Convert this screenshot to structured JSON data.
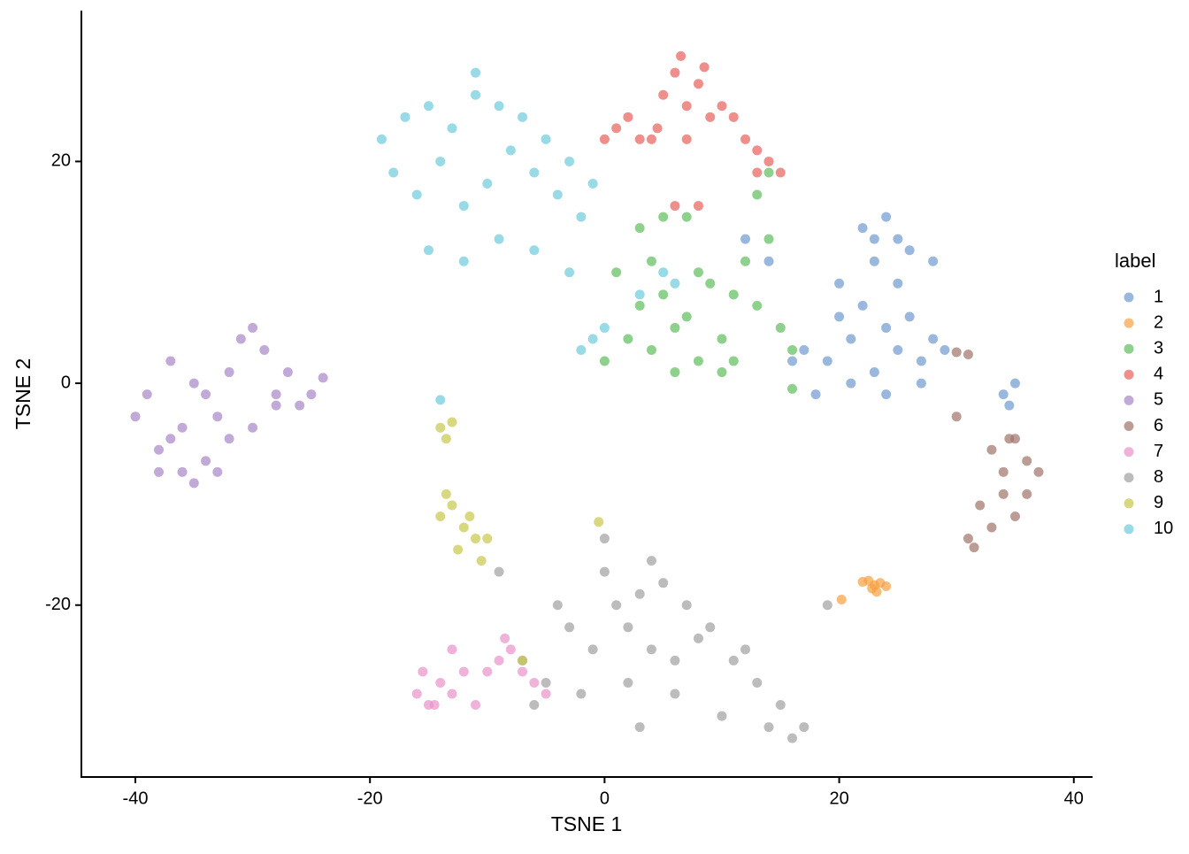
{
  "chart_data": {
    "type": "scatter",
    "xlabel": "TSNE 1",
    "ylabel": "TSNE 2",
    "legend_title": "label",
    "legend": "right",
    "xlim": [
      -44.6,
      41.6
    ],
    "ylim": [
      -35.5,
      33.6
    ],
    "xticks": [
      -40,
      -20,
      0,
      20,
      40
    ],
    "yticks": [
      -20,
      0,
      20
    ],
    "series": [
      {
        "name": "1",
        "color": "#6f99d0",
        "x": [
          17,
          19,
          21,
          23,
          25,
          27,
          29,
          20,
          22,
          24,
          26,
          28,
          18,
          21,
          24,
          27,
          23,
          25,
          22,
          24,
          26,
          28,
          25,
          23,
          34,
          34.5,
          35,
          12,
          14,
          20,
          16
        ],
        "y": [
          3,
          2,
          4,
          1,
          3,
          2,
          3,
          6,
          7,
          5,
          6,
          4,
          -1,
          0,
          -1,
          0,
          11,
          13,
          14,
          15,
          12,
          11,
          9,
          13,
          -1,
          -2,
          0,
          13,
          11,
          9,
          2
        ]
      },
      {
        "name": "2",
        "color": "#f8a040",
        "x": [
          22.5,
          23,
          23.5,
          22.8,
          23.2,
          20.2,
          22,
          24
        ],
        "y": [
          -17.8,
          -18.2,
          -18,
          -18.5,
          -18.8,
          -19.5,
          -17.9,
          -18.3
        ]
      },
      {
        "name": "3",
        "color": "#5cbd5c",
        "x": [
          0,
          2,
          4,
          6,
          8,
          10,
          3,
          5,
          7,
          9,
          11,
          13,
          15,
          1,
          4,
          8,
          12,
          14,
          16,
          6,
          10,
          13,
          14,
          3,
          5,
          7,
          16,
          11
        ],
        "y": [
          2,
          4,
          3,
          5,
          2,
          4,
          7,
          8,
          6,
          9,
          8,
          7,
          5,
          10,
          11,
          10,
          11,
          13,
          3,
          1,
          1,
          17,
          19,
          14,
          15,
          15,
          -0.5,
          2
        ]
      },
      {
        "name": "4",
        "color": "#e8605a",
        "x": [
          5,
          6,
          7,
          8,
          9,
          4.5,
          6.5,
          8.5,
          10,
          11,
          12,
          13,
          14,
          15,
          0,
          1,
          2,
          3,
          4,
          7,
          13,
          6,
          8
        ],
        "y": [
          26,
          28,
          25,
          27,
          24,
          23,
          29.5,
          28.5,
          25,
          24,
          22,
          21,
          20,
          19,
          22,
          23,
          24,
          22,
          22,
          22,
          19,
          16,
          16
        ]
      },
      {
        "name": "5",
        "color": "#a886c8",
        "x": [
          -40,
          -38,
          -36,
          -34,
          -32,
          -30,
          -28,
          -26,
          -39,
          -37,
          -35,
          -33,
          -31,
          -29,
          -27,
          -38,
          -36,
          -34,
          -32,
          -30,
          -28,
          -25,
          -24,
          -37,
          -35,
          -33
        ],
        "y": [
          -3,
          -6,
          -8,
          -7,
          -5,
          -4,
          -2,
          -2,
          -1,
          2,
          0,
          -3,
          4,
          3,
          1,
          -8,
          -4,
          -1,
          1,
          5,
          -1,
          -1,
          0.5,
          -5,
          -9,
          -8
        ]
      },
      {
        "name": "6",
        "color": "#a0736a",
        "x": [
          33,
          34,
          35,
          36,
          37,
          34,
          35,
          32,
          33,
          31,
          30,
          31.5,
          34.5,
          36,
          30,
          31
        ],
        "y": [
          -6,
          -8,
          -5,
          -7,
          -8,
          -10,
          -12,
          -11,
          -13,
          -14,
          -3,
          -14.8,
          -5,
          -10,
          2.8,
          2.6
        ]
      },
      {
        "name": "7",
        "color": "#e991c9",
        "x": [
          -16,
          -15,
          -14,
          -13,
          -12,
          -10,
          -9,
          -8,
          -7,
          -6,
          -5,
          -15.5,
          -14.5,
          -11,
          -8.5,
          -13
        ],
        "y": [
          -28,
          -29,
          -27,
          -28,
          -26,
          -26,
          -25,
          -24,
          -26,
          -27,
          -28,
          -26,
          -29,
          -29,
          -23,
          -24
        ]
      },
      {
        "name": "8",
        "color": "#a0a0a0",
        "x": [
          -7,
          -5,
          -3,
          -1,
          1,
          3,
          5,
          7,
          9,
          11,
          13,
          15,
          17,
          -6,
          -2,
          2,
          6,
          10,
          14,
          0,
          4,
          8,
          12,
          2,
          6,
          -4,
          0,
          4,
          16,
          -9,
          3,
          19
        ],
        "y": [
          -25,
          -27,
          -22,
          -24,
          -20,
          -19,
          -18,
          -20,
          -22,
          -25,
          -27,
          -29,
          -31,
          -29,
          -28,
          -27,
          -28,
          -30,
          -31,
          -17,
          -16,
          -23,
          -24,
          -22,
          -25,
          -20,
          -14,
          -24,
          -32,
          -17,
          -31,
          -20
        ]
      },
      {
        "name": "9",
        "color": "#c7c74c",
        "x": [
          -14,
          -13,
          -12,
          -11,
          -13.5,
          -12.5,
          -11.5,
          -10.5,
          -10,
          -14,
          -13.5,
          -13,
          -0.5,
          -7
        ],
        "y": [
          -12,
          -11,
          -13,
          -14,
          -10,
          -15,
          -12,
          -16,
          -14,
          -4,
          -5,
          -3.5,
          -12.5,
          -25
        ]
      },
      {
        "name": "10",
        "color": "#6ccadb",
        "x": [
          -19,
          -17,
          -15,
          -13,
          -11,
          -9,
          -7,
          -5,
          -3,
          -1,
          -18,
          -16,
          -14,
          -12,
          -10,
          -8,
          -6,
          -4,
          -2,
          -15,
          -12,
          -9,
          -6,
          -3,
          0,
          -11,
          3,
          5,
          6,
          -14,
          -2,
          -1
        ],
        "y": [
          22,
          24,
          25,
          23,
          26,
          25,
          24,
          22,
          20,
          18,
          19,
          17,
          20,
          16,
          18,
          21,
          19,
          17,
          15,
          12,
          11,
          13,
          12,
          10,
          5,
          28,
          8,
          10,
          9,
          -1.5,
          3,
          4
        ]
      }
    ]
  }
}
